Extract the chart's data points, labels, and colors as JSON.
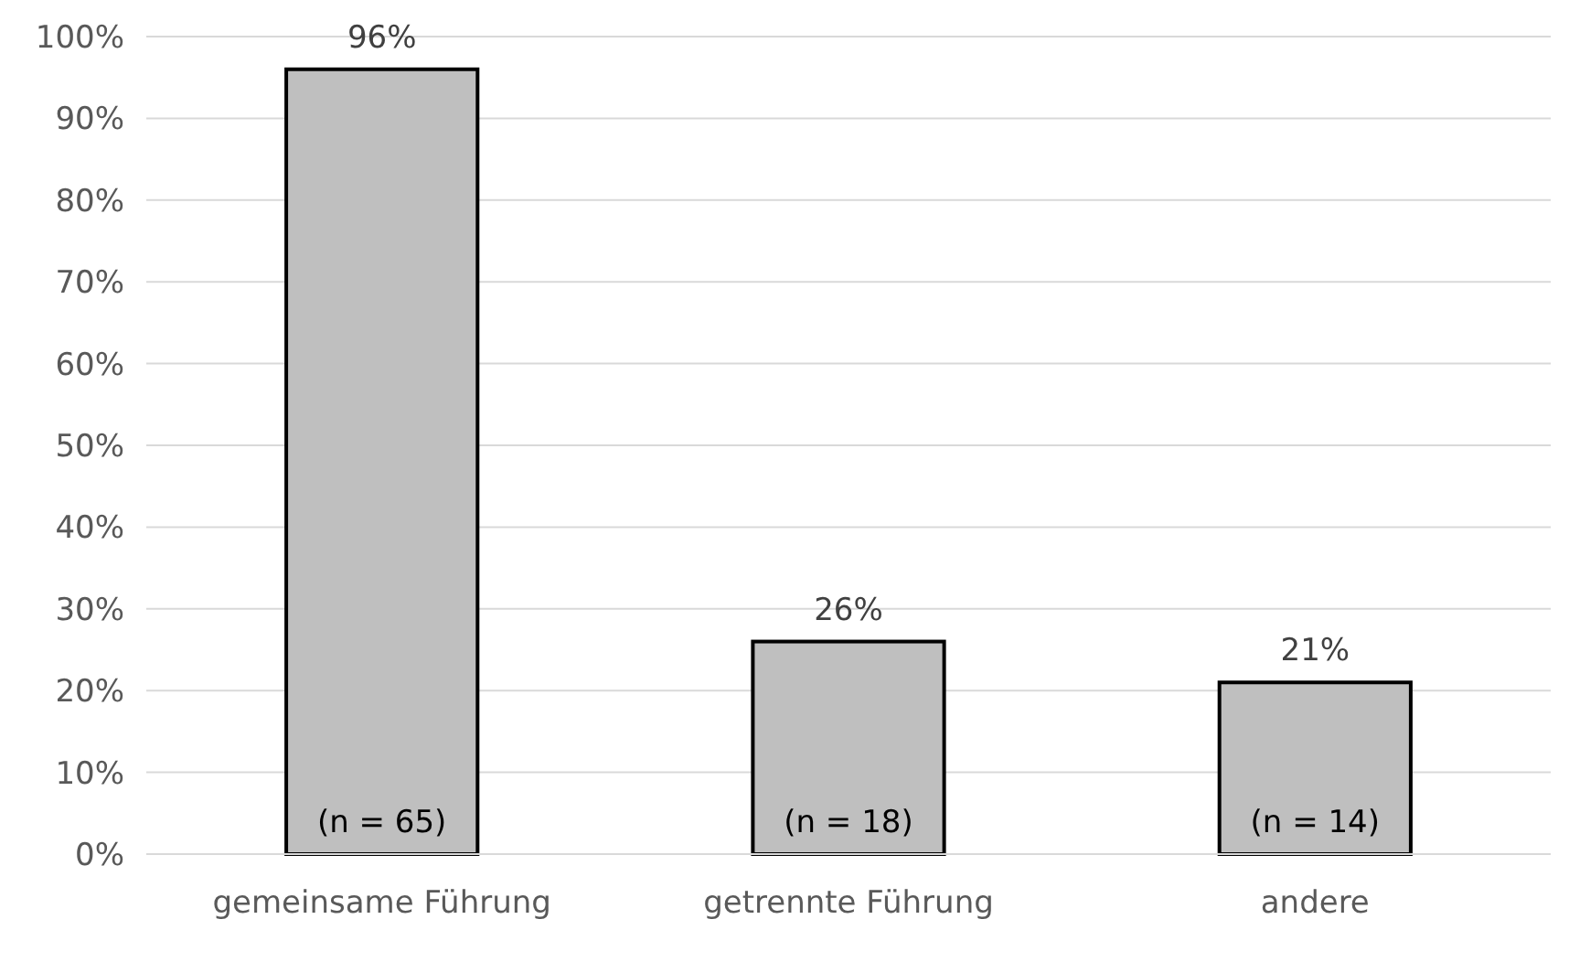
{
  "chart_data": {
    "type": "bar",
    "categories": [
      "gemeinsame Führung",
      "getrennte Führung",
      "andere"
    ],
    "values": [
      96,
      26,
      21
    ],
    "color": "#bfbfbf",
    "value_labels": [
      "96%",
      "26%",
      "21%"
    ],
    "ylim": [
      0,
      100
    ],
    "yticks": [
      {
        "value": 0,
        "label": "0%"
      },
      {
        "value": 10,
        "label": "10%"
      },
      {
        "value": 20,
        "label": "20%"
      },
      {
        "value": 30,
        "label": "30%"
      },
      {
        "value": 40,
        "label": "40%"
      },
      {
        "value": 50,
        "label": "50%"
      },
      {
        "value": 60,
        "label": "60%"
      },
      {
        "value": 70,
        "label": "70%"
      },
      {
        "value": 80,
        "label": "80%"
      },
      {
        "value": 90,
        "label": "90%"
      },
      {
        "value": 100,
        "label": "100%"
      }
    ],
    "grid": "y",
    "annotations": [
      "(n = 65)",
      "(n = 18)",
      "(n = 14)"
    ]
  }
}
